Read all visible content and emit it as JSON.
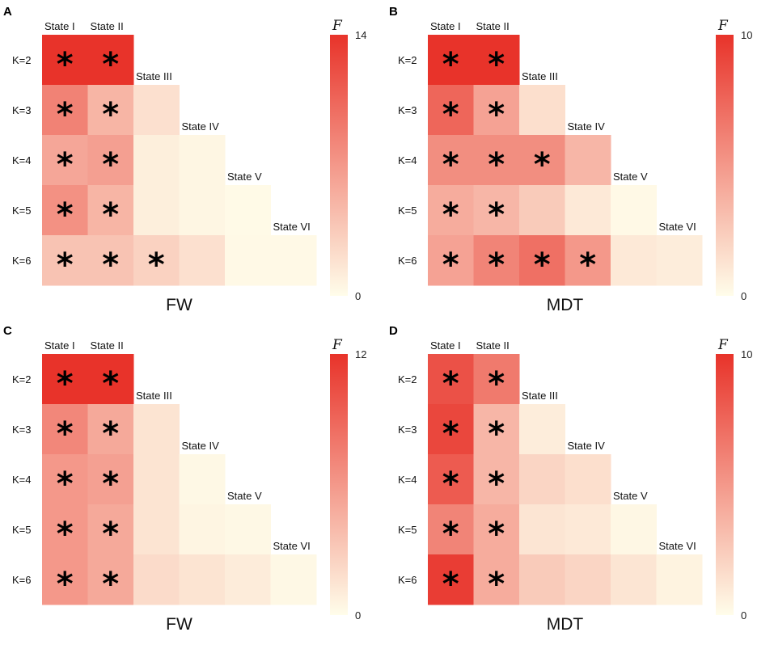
{
  "chart_data": [
    {
      "type": "heatmap",
      "panel_label": "A",
      "xlabel": "FW",
      "columns": [
        "State I",
        "State II",
        "State III",
        "State IV",
        "State V",
        "State VI"
      ],
      "rows": [
        "K=2",
        "K=3",
        "K=4",
        "K=5",
        "K=6"
      ],
      "colorbar": {
        "title": "F",
        "min": 0,
        "max": 14,
        "min_label": "0",
        "max_label": "14"
      },
      "values": [
        [
          14,
          14
        ],
        [
          8.5,
          5,
          2
        ],
        [
          6,
          6.5,
          1,
          0.5
        ],
        [
          7.5,
          5,
          1,
          0.5,
          0.2
        ],
        [
          4,
          4,
          3,
          2,
          0.3,
          0.3
        ]
      ],
      "significant": [
        [
          true,
          true
        ],
        [
          true,
          true,
          false
        ],
        [
          true,
          true,
          false,
          false
        ],
        [
          true,
          true,
          false,
          false,
          false
        ],
        [
          true,
          true,
          true,
          false,
          false,
          false
        ]
      ]
    },
    {
      "type": "heatmap",
      "panel_label": "B",
      "xlabel": "MDT",
      "columns": [
        "State I",
        "State II",
        "State III",
        "State IV",
        "State V",
        "State VI"
      ],
      "rows": [
        "K=2",
        "K=3",
        "K=4",
        "K=5",
        "K=6"
      ],
      "colorbar": {
        "title": "F",
        "min": 0,
        "max": 10,
        "min_label": "0",
        "max_label": "10"
      },
      "values": [
        [
          10,
          10
        ],
        [
          7.5,
          4.5,
          1.5
        ],
        [
          5.5,
          5.5,
          5.5,
          3.5
        ],
        [
          4,
          3.5,
          2.5,
          1,
          0.2
        ],
        [
          4.5,
          6,
          7,
          5,
          1,
          0.8
        ]
      ],
      "significant": [
        [
          true,
          true
        ],
        [
          true,
          true,
          false
        ],
        [
          true,
          true,
          true,
          false
        ],
        [
          true,
          true,
          false,
          false,
          false
        ],
        [
          true,
          true,
          true,
          true,
          false,
          false
        ]
      ]
    },
    {
      "type": "heatmap",
      "panel_label": "C",
      "xlabel": "FW",
      "columns": [
        "State I",
        "State II",
        "State III",
        "State IV",
        "State V",
        "State VI"
      ],
      "rows": [
        "K=2",
        "K=3",
        "K=4",
        "K=5",
        "K=6"
      ],
      "colorbar": {
        "title": "F",
        "min": 0,
        "max": 12,
        "min_label": "0",
        "max_label": "12"
      },
      "values": [
        [
          12,
          12
        ],
        [
          7,
          5,
          1.5
        ],
        [
          6,
          5.5,
          1.5,
          0.3
        ],
        [
          6,
          5,
          1.5,
          0.5,
          0.3
        ],
        [
          6,
          5,
          2,
          1.5,
          1,
          0.3
        ]
      ],
      "significant": [
        [
          true,
          true
        ],
        [
          true,
          true,
          false
        ],
        [
          true,
          true,
          false,
          false
        ],
        [
          true,
          true,
          false,
          false,
          false
        ],
        [
          true,
          true,
          false,
          false,
          false,
          false
        ]
      ]
    },
    {
      "type": "heatmap",
      "panel_label": "D",
      "xlabel": "MDT",
      "columns": [
        "State I",
        "State II",
        "State III",
        "State IV",
        "State V",
        "State VI"
      ],
      "rows": [
        "K=2",
        "K=3",
        "K=4",
        "K=5",
        "K=6"
      ],
      "colorbar": {
        "title": "F",
        "min": 0,
        "max": 10,
        "min_label": "0",
        "max_label": "10"
      },
      "values": [
        [
          8.5,
          6.5
        ],
        [
          9,
          3.5,
          0.8
        ],
        [
          8,
          3.5,
          2,
          1.5
        ],
        [
          6,
          4,
          1.2,
          1,
          0.3
        ],
        [
          9.5,
          4,
          2.5,
          2,
          1.2,
          0.5
        ]
      ],
      "significant": [
        [
          true,
          true
        ],
        [
          true,
          true,
          false
        ],
        [
          true,
          true,
          false,
          false
        ],
        [
          true,
          true,
          false,
          false,
          false
        ],
        [
          true,
          true,
          false,
          false,
          false,
          false
        ]
      ]
    }
  ],
  "colors": {
    "low": "#fffdea",
    "high": "#e8332a",
    "star": "#000000"
  },
  "star_symbol": "*"
}
